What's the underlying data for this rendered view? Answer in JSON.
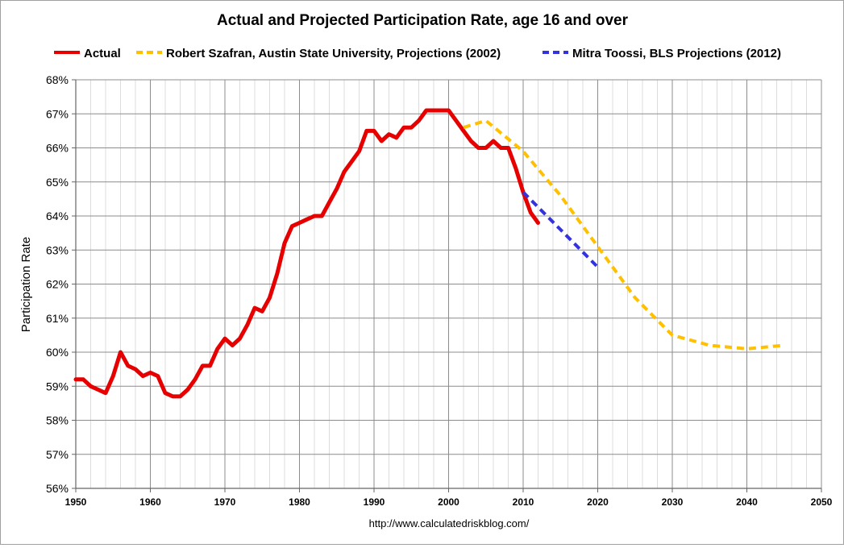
{
  "chart_data": {
    "type": "line",
    "title": "Actual and Projected Participation Rate, age 16 and over",
    "ylabel": "Participation Rate",
    "xlabel": "",
    "source": "http://www.calculatedriskblog.com/",
    "xlim": [
      1950,
      2050
    ],
    "ylim": [
      56,
      68
    ],
    "x_ticks": [
      1950,
      1960,
      1970,
      1980,
      1990,
      2000,
      2010,
      2020,
      2030,
      2040,
      2050
    ],
    "x_tick_labels": [
      "1950",
      "1960",
      "1970",
      "1980",
      "1990",
      "2000",
      "2010",
      "2020",
      "2030",
      "2040",
      "2050"
    ],
    "y_ticks": [
      56,
      57,
      58,
      59,
      60,
      61,
      62,
      63,
      64,
      65,
      66,
      67,
      68
    ],
    "y_tick_labels": [
      "56%",
      "57%",
      "58%",
      "59%",
      "60%",
      "61%",
      "62%",
      "63%",
      "64%",
      "65%",
      "66%",
      "67%",
      "68%"
    ],
    "grid": true,
    "legend_position": "top",
    "series": [
      {
        "name": "Actual",
        "color": "#e60000",
        "style": "solid",
        "x": [
          1950,
          1951,
          1952,
          1953,
          1954,
          1955,
          1956,
          1957,
          1958,
          1959,
          1960,
          1961,
          1962,
          1963,
          1964,
          1965,
          1966,
          1967,
          1968,
          1969,
          1970,
          1971,
          1972,
          1973,
          1974,
          1975,
          1976,
          1977,
          1978,
          1979,
          1980,
          1981,
          1982,
          1983,
          1984,
          1985,
          1986,
          1987,
          1988,
          1989,
          1990,
          1991,
          1992,
          1993,
          1994,
          1995,
          1996,
          1997,
          1998,
          1999,
          2000,
          2001,
          2002,
          2003,
          2004,
          2005,
          2006,
          2007,
          2008,
          2009,
          2010,
          2011,
          2012
        ],
        "values": [
          59.2,
          59.2,
          59.0,
          58.9,
          58.8,
          59.3,
          60.0,
          59.6,
          59.5,
          59.3,
          59.4,
          59.3,
          58.8,
          58.7,
          58.7,
          58.9,
          59.2,
          59.6,
          59.6,
          60.1,
          60.4,
          60.2,
          60.4,
          60.8,
          61.3,
          61.2,
          61.6,
          62.3,
          63.2,
          63.7,
          63.8,
          63.9,
          64.0,
          64.0,
          64.4,
          64.8,
          65.3,
          65.6,
          65.9,
          66.5,
          66.5,
          66.2,
          66.4,
          66.3,
          66.6,
          66.6,
          66.8,
          67.1,
          67.1,
          67.1,
          67.1,
          66.8,
          66.5,
          66.2,
          66.0,
          66.0,
          66.2,
          66.0,
          66.0,
          65.4,
          64.7,
          64.1,
          63.8
        ]
      },
      {
        "name": "Robert Szafran, Austin State University, Projections (2002)",
        "color": "#ffc000",
        "style": "dashed",
        "x": [
          2002,
          2005,
          2010,
          2015,
          2020,
          2025,
          2030,
          2035,
          2040,
          2045
        ],
        "values": [
          66.6,
          66.8,
          65.9,
          64.6,
          63.1,
          61.6,
          60.5,
          60.2,
          60.1,
          60.2
        ]
      },
      {
        "name": "Mitra Toossi, BLS Projections (2012)",
        "color": "#3333dd",
        "style": "dashed",
        "x": [
          2010,
          2015,
          2020
        ],
        "values": [
          64.7,
          63.6,
          62.5
        ]
      }
    ]
  }
}
